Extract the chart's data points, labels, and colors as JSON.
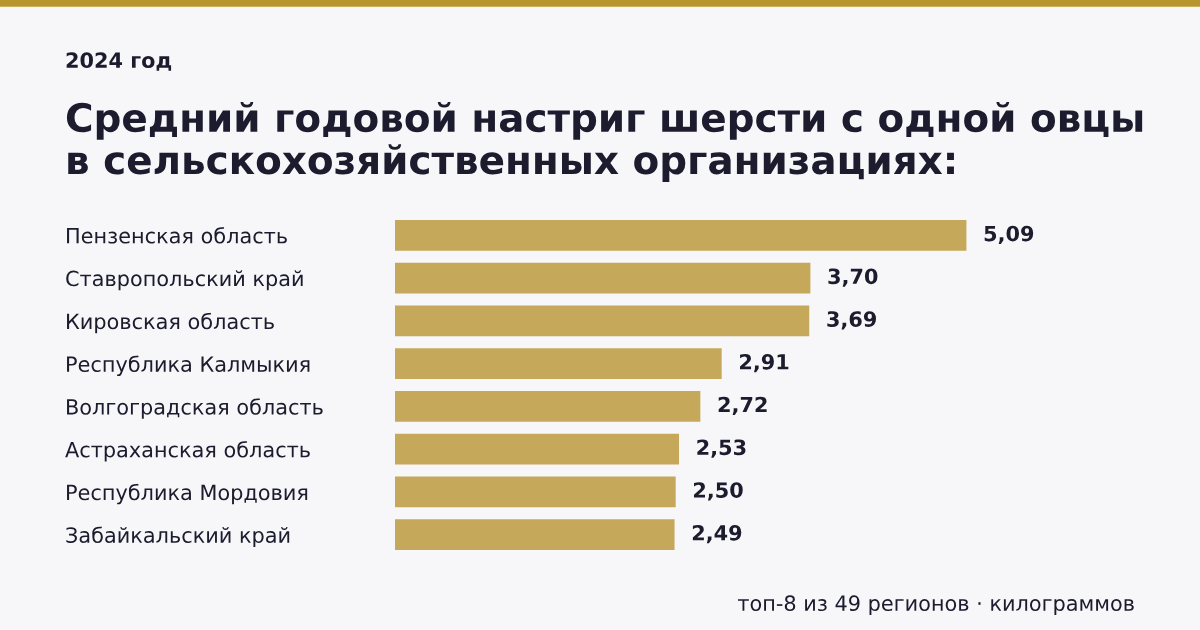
{
  "chart_data": {
    "type": "bar",
    "orientation": "horizontal",
    "subtitle": "2024 год",
    "title": "Средний годовой настриг шерсти с одной овцы\nв сельскохозяйственных организациях:",
    "categories": [
      "Пензенская область",
      "Ставропольский край",
      "Кировская область",
      "Республика Калмыкия",
      "Волгоградская область",
      "Астраханская область",
      "Республика Мордовия",
      "Забайкальский край"
    ],
    "values": [
      5.09,
      3.7,
      3.69,
      2.91,
      2.72,
      2.53,
      2.5,
      2.49
    ],
    "value_labels": [
      "5,09",
      "3,70",
      "3,69",
      "2,91",
      "2,72",
      "2,53",
      "2,50",
      "2,49"
    ],
    "color": "#c6a85a",
    "grid": false,
    "legend": false,
    "annotations": [
      "топ-8 из 49 регионов · килограммов"
    ]
  }
}
